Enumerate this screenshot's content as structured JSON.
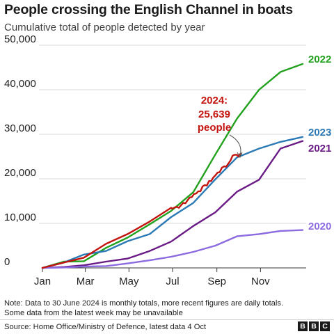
{
  "title": "People crossing the English Channel in boats",
  "subtitle": "Cumulative total of people detected by year",
  "note_lines": [
    "Note: Data to 30 June 2024 is monthly totals, more recent figures are daily totals.",
    "Some data from the latest week may be unavailable"
  ],
  "source": "Source: Home Office/Ministry of Defence, latest data 4 Oct",
  "logo_letters": [
    "B",
    "B",
    "C"
  ],
  "chart_data": {
    "type": "line",
    "title": "People crossing the English Channel in boats",
    "subtitle": "Cumulative total of people detected by year",
    "xlabel": "",
    "ylabel": "",
    "x_unit": "day_of_year",
    "xlim": [
      1,
      366
    ],
    "ylim": [
      0,
      50000
    ],
    "grid": "horizontal",
    "x_ticks": [
      {
        "label": "Jan",
        "x": 1
      },
      {
        "label": "Mar",
        "x": 61
      },
      {
        "label": "May",
        "x": 122
      },
      {
        "label": "Jul",
        "x": 183
      },
      {
        "label": "Sep",
        "x": 245
      },
      {
        "label": "Nov",
        "x": 306
      }
    ],
    "y_ticks": [
      {
        "label": "0",
        "value": 0
      },
      {
        "label": "10,000",
        "value": 10000
      },
      {
        "label": "20,000",
        "value": 20000
      },
      {
        "label": "30,000",
        "value": 30000
      },
      {
        "label": "40,000",
        "value": 40000
      },
      {
        "label": "50,000",
        "value": 50000
      }
    ],
    "series": [
      {
        "name": "2022",
        "color": "#22a11e",
        "points": [
          [
            1,
            0
          ],
          [
            31,
            1400
          ],
          [
            59,
            1500
          ],
          [
            90,
            4500
          ],
          [
            120,
            6800
          ],
          [
            151,
            9800
          ],
          [
            181,
            12800
          ],
          [
            212,
            17000
          ],
          [
            243,
            25500
          ],
          [
            273,
            33500
          ],
          [
            304,
            40000
          ],
          [
            334,
            44000
          ],
          [
            365,
            45800
          ]
        ]
      },
      {
        "name": "2023",
        "color": "#2b79b5",
        "points": [
          [
            1,
            0
          ],
          [
            31,
            1200
          ],
          [
            59,
            3000
          ],
          [
            90,
            3800
          ],
          [
            120,
            6000
          ],
          [
            151,
            7600
          ],
          [
            181,
            11400
          ],
          [
            212,
            14600
          ],
          [
            243,
            19900
          ],
          [
            273,
            24800
          ],
          [
            304,
            26800
          ],
          [
            334,
            28300
          ],
          [
            365,
            29400
          ]
        ]
      },
      {
        "name": "2021",
        "color": "#6a1a85",
        "points": [
          [
            1,
            0
          ],
          [
            31,
            200
          ],
          [
            59,
            600
          ],
          [
            90,
            1400
          ],
          [
            120,
            2100
          ],
          [
            151,
            3800
          ],
          [
            181,
            5900
          ],
          [
            212,
            9400
          ],
          [
            243,
            12500
          ],
          [
            273,
            17100
          ],
          [
            304,
            19800
          ],
          [
            334,
            26800
          ],
          [
            365,
            28500
          ]
        ]
      },
      {
        "name": "2020",
        "color": "#8c6ae0",
        "points": [
          [
            1,
            0
          ],
          [
            31,
            100
          ],
          [
            59,
            300
          ],
          [
            90,
            400
          ],
          [
            120,
            1000
          ],
          [
            151,
            1700
          ],
          [
            181,
            2500
          ],
          [
            212,
            3600
          ],
          [
            243,
            5000
          ],
          [
            273,
            7100
          ],
          [
            304,
            7600
          ],
          [
            334,
            8300
          ],
          [
            365,
            8500
          ]
        ]
      },
      {
        "name": "2024",
        "color": "#c4140f",
        "points": [
          [
            1,
            0
          ],
          [
            31,
            1200
          ],
          [
            59,
            2300
          ],
          [
            90,
            5400
          ],
          [
            120,
            7600
          ],
          [
            151,
            10400
          ],
          [
            181,
            13500
          ],
          [
            183,
            13300
          ],
          [
            186,
            13600
          ],
          [
            189,
            13700
          ],
          [
            192,
            13500
          ],
          [
            195,
            14100
          ],
          [
            198,
            14600
          ],
          [
            201,
            14500
          ],
          [
            204,
            15200
          ],
          [
            207,
            15800
          ],
          [
            210,
            15900
          ],
          [
            213,
            16600
          ],
          [
            216,
            16700
          ],
          [
            219,
            17200
          ],
          [
            222,
            17200
          ],
          [
            225,
            18300
          ],
          [
            228,
            18600
          ],
          [
            231,
            18500
          ],
          [
            234,
            19500
          ],
          [
            237,
            19500
          ],
          [
            240,
            20300
          ],
          [
            243,
            20800
          ],
          [
            246,
            21400
          ],
          [
            249,
            21500
          ],
          [
            252,
            22500
          ],
          [
            255,
            22800
          ],
          [
            258,
            22700
          ],
          [
            261,
            23400
          ],
          [
            264,
            24100
          ],
          [
            267,
            25200
          ],
          [
            270,
            25400
          ],
          [
            273,
            25400
          ],
          [
            275,
            25000
          ],
          [
            278,
            25639
          ]
        ]
      }
    ],
    "annotation": {
      "lines": [
        "2024:",
        "25,639",
        "people"
      ],
      "color": "#c4140f"
    }
  }
}
